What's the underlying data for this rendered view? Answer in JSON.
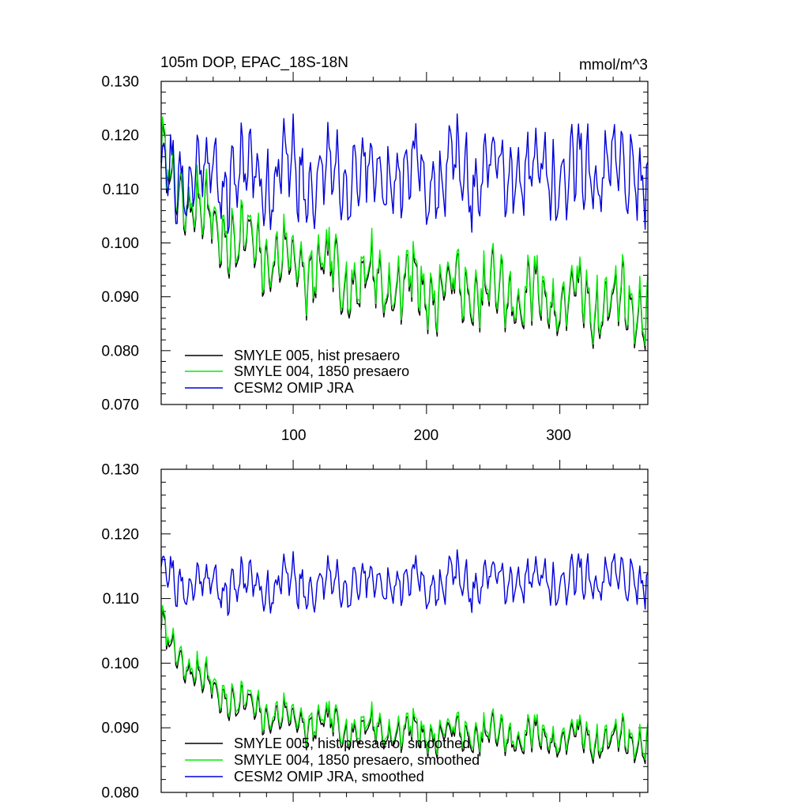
{
  "chart_data": [
    {
      "type": "line",
      "title": "105m DOP, EPAC_18S-18N",
      "units": "mmol/m^3",
      "xlabel": "",
      "ylabel": "",
      "xlim": [
        1,
        366
      ],
      "ylim": [
        0.07,
        0.13
      ],
      "x_ticks": [
        "100",
        "200",
        "300"
      ],
      "y_ticks": [
        "0.070",
        "0.080",
        "0.090",
        "0.100",
        "0.110",
        "0.120",
        "0.130"
      ],
      "legend_position": "bottom-left",
      "series": [
        {
          "name": "SMYLE 005, hist presaero",
          "color": "#000000",
          "start": 0.115,
          "mean": 0.095,
          "trend": -0.006,
          "amplitude": 0.0075,
          "decay": 55,
          "offset": -0.0008,
          "seed": 7
        },
        {
          "name": "SMYLE 004, 1850 presaero",
          "color": "#00ee00",
          "start": 0.115,
          "mean": 0.095,
          "trend": -0.006,
          "amplitude": 0.0075,
          "decay": 55,
          "offset": 0.0,
          "seed": 7
        },
        {
          "name": "CESM2 OMIP JRA",
          "color": "#0000dd",
          "start": 0.113,
          "mean": 0.1125,
          "trend": 0.0005,
          "amplitude": 0.0095,
          "decay": 10,
          "offset": 0.0,
          "seed": 21
        }
      ]
    },
    {
      "type": "line",
      "title": "",
      "xlabel": "",
      "ylabel": "",
      "xlim": [
        1,
        366
      ],
      "ylim": [
        0.08,
        0.13
      ],
      "x_ticks": [],
      "y_ticks": [
        "0.080",
        "0.090",
        "0.100",
        "0.110",
        "0.120",
        "0.130"
      ],
      "legend_position": "bottom-left",
      "series": [
        {
          "name": "SMYLE 005, hist presaero, smoothed",
          "color": "#000000",
          "start": 0.1055,
          "mean": 0.0905,
          "trend": -0.002,
          "amplitude": 0.0032,
          "decay": 45,
          "offset": -0.0006,
          "seed": 7
        },
        {
          "name": "SMYLE 004, 1850 presaero, smoothed",
          "color": "#00ee00",
          "start": 0.1055,
          "mean": 0.0905,
          "trend": -0.002,
          "amplitude": 0.0032,
          "decay": 45,
          "offset": 0.0,
          "seed": 7
        },
        {
          "name": "CESM2 OMIP JRA, smoothed",
          "color": "#0000dd",
          "start": 0.1145,
          "mean": 0.112,
          "trend": 0.001,
          "amplitude": 0.0042,
          "decay": 10,
          "offset": 0.0,
          "seed": 21
        }
      ]
    }
  ]
}
